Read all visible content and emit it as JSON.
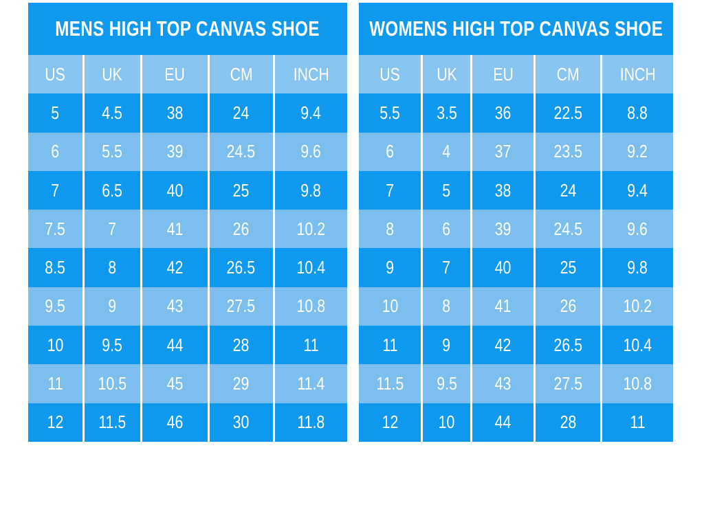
{
  "colors": {
    "dark_blue": "#0E99EF",
    "light_blue": "#7CBFEE",
    "header_blue": "#87C4F0",
    "text_white": "#FFFFFF",
    "page_bg": "#FFFFFF"
  },
  "chart_data": [
    {
      "type": "table",
      "title": "MENS HIGH TOP CANVAS SHOE",
      "columns": [
        "US",
        "UK",
        "EU",
        "CM",
        "INCH"
      ],
      "rows": [
        [
          "5",
          "4.5",
          "38",
          "24",
          "9.4"
        ],
        [
          "6",
          "5.5",
          "39",
          "24.5",
          "9.6"
        ],
        [
          "7",
          "6.5",
          "40",
          "25",
          "9.8"
        ],
        [
          "7.5",
          "7",
          "41",
          "26",
          "10.2"
        ],
        [
          "8.5",
          "8",
          "42",
          "26.5",
          "10.4"
        ],
        [
          "9.5",
          "9",
          "43",
          "27.5",
          "10.8"
        ],
        [
          "10",
          "9.5",
          "44",
          "28",
          "11"
        ],
        [
          "11",
          "10.5",
          "45",
          "29",
          "11.4"
        ],
        [
          "12",
          "11.5",
          "46",
          "30",
          "11.8"
        ]
      ],
      "layout": {
        "row_striping": "dark-light alternating",
        "grid": "white vertical column separators only"
      }
    },
    {
      "type": "table",
      "title": "WOMENS HIGH TOP CANVAS SHOE",
      "columns": [
        "US",
        "UK",
        "EU",
        "CM",
        "INCH"
      ],
      "rows": [
        [
          "5.5",
          "3.5",
          "36",
          "22.5",
          "8.8"
        ],
        [
          "6",
          "4",
          "37",
          "23.5",
          "9.2"
        ],
        [
          "7",
          "5",
          "38",
          "24",
          "9.4"
        ],
        [
          "8",
          "6",
          "39",
          "24.5",
          "9.6"
        ],
        [
          "9",
          "7",
          "40",
          "25",
          "9.8"
        ],
        [
          "10",
          "8",
          "41",
          "26",
          "10.2"
        ],
        [
          "11",
          "9",
          "42",
          "26.5",
          "10.4"
        ],
        [
          "11.5",
          "9.5",
          "43",
          "27.5",
          "10.8"
        ],
        [
          "12",
          "10",
          "44",
          "28",
          "11"
        ]
      ],
      "layout": {
        "row_striping": "dark-light alternating",
        "grid": "white vertical column separators only"
      }
    }
  ]
}
